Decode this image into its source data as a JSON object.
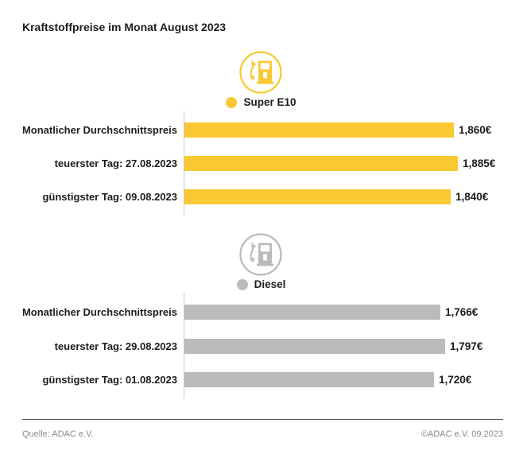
{
  "title": "Kraftstoffpreise im Monat August 2023",
  "sections": [
    {
      "id": "super-e10",
      "legend_label": "Super E10",
      "accent_color": "#F9C933",
      "icon": "fuel-pump-icon",
      "rows": [
        {
          "label": "Monatlicher Durchschnittspreis",
          "value": 1.86,
          "value_label": "1,860€"
        },
        {
          "label": "teuerster Tag: 27.08.2023",
          "value": 1.885,
          "value_label": "1,885€"
        },
        {
          "label": "günstigster Tag: 09.08.2023",
          "value": 1.84,
          "value_label": "1,840€"
        }
      ]
    },
    {
      "id": "diesel",
      "legend_label": "Diesel",
      "accent_color": "#BBBBBB",
      "icon": "fuel-pump-icon",
      "rows": [
        {
          "label": "Monatlicher Durchschnittspreis",
          "value": 1.766,
          "value_label": "1,766€"
        },
        {
          "label": "teuerster Tag: 29.08.2023",
          "value": 1.797,
          "value_label": "1,797€"
        },
        {
          "label": "günstigster Tag: 01.08.2023",
          "value": 1.72,
          "value_label": "1,720€"
        }
      ]
    }
  ],
  "footer": {
    "source": "Quelle: ADAC e.V.",
    "copyright": "©ADAC e.V. 09.2023"
  },
  "chart_data": [
    {
      "type": "bar",
      "orientation": "horizontal",
      "title": "Super E10",
      "categories": [
        "Monatlicher Durchschnittspreis",
        "teuerster Tag: 27.08.2023",
        "günstigster Tag: 09.08.2023"
      ],
      "values": [
        1.86,
        1.885,
        1.84
      ],
      "value_labels": [
        "1,860€",
        "1,885€",
        "1,840€"
      ],
      "unit": "€ pro Liter",
      "bar_color": "#F9C933",
      "xlim": [
        0,
        1.9
      ],
      "grid": false,
      "legend_position": "top-center"
    },
    {
      "type": "bar",
      "orientation": "horizontal",
      "title": "Diesel",
      "categories": [
        "Monatlicher Durchschnittspreis",
        "teuerster Tag: 29.08.2023",
        "günstigster Tag: 01.08.2023"
      ],
      "values": [
        1.766,
        1.797,
        1.72
      ],
      "value_labels": [
        "1,766€",
        "1,797€",
        "1,720€"
      ],
      "unit": "€ pro Liter",
      "bar_color": "#BBBBBB",
      "xlim": [
        0,
        1.9
      ],
      "grid": false,
      "legend_position": "top-center"
    }
  ]
}
